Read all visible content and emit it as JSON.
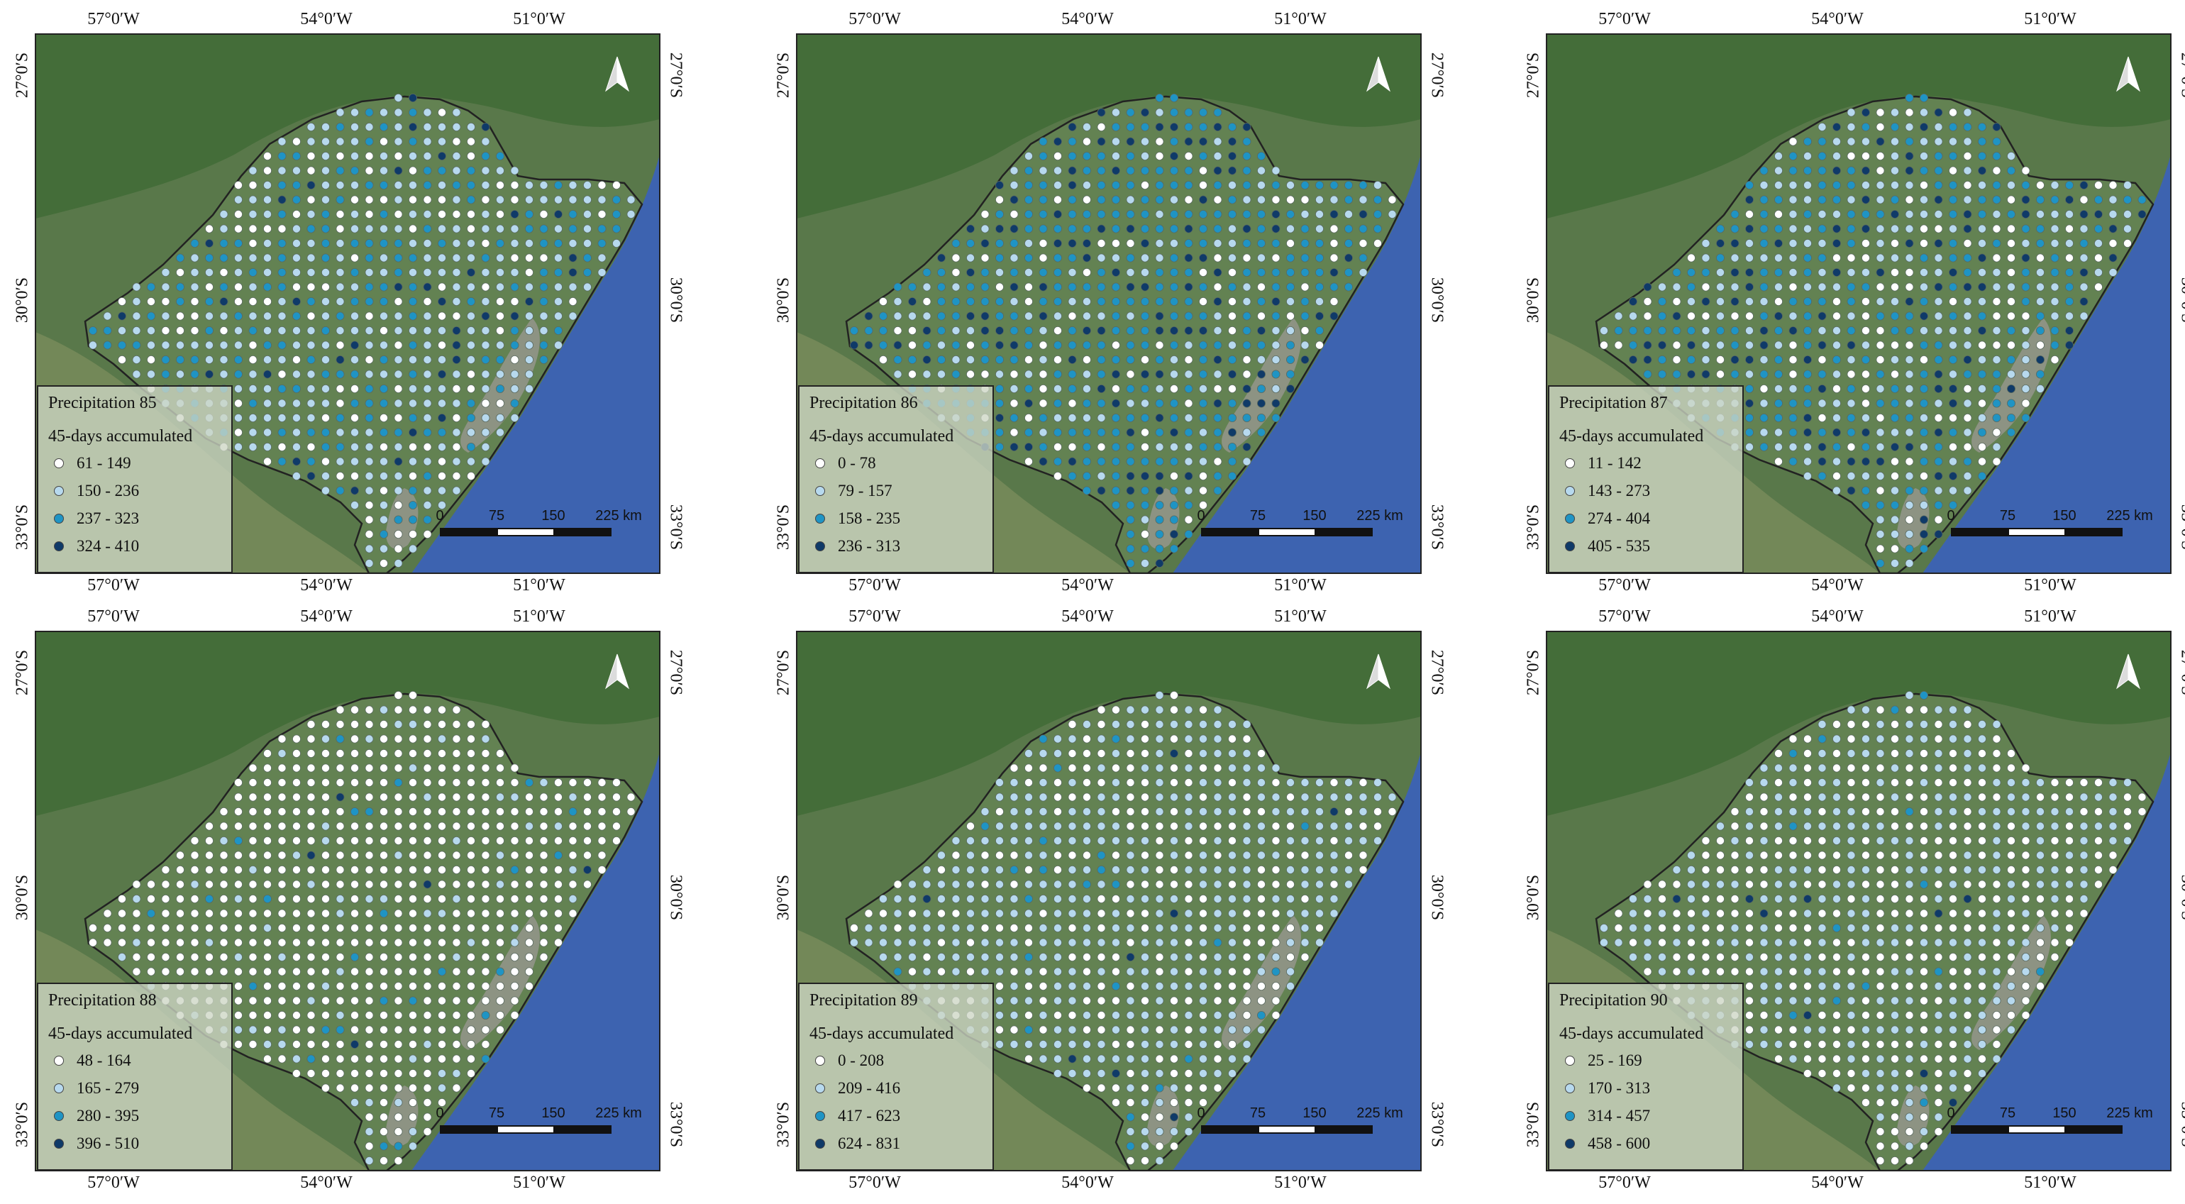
{
  "axes": {
    "lon_labels": [
      "57°0′W",
      "54°0′W",
      "51°0′W"
    ],
    "lat_labels": [
      "27°0′S",
      "30°0′S",
      "33°0′S"
    ]
  },
  "scale_bar": {
    "labels": [
      "0",
      "75",
      "150",
      "225 km"
    ]
  },
  "icons": {
    "north_arrow": "north-arrow-icon",
    "legend_symbol": "circle-marker-icon"
  },
  "colors": {
    "class_1": "#ffffff",
    "class_2": "#b7d9ee",
    "class_3": "#1f94c4",
    "class_4": "#0f3a68",
    "ocean": "#3d63b0",
    "land": "#59784a",
    "state_fill": "#6b8a5a",
    "lagoon": "#8f9486"
  },
  "panels": [
    {
      "title": "Precipitation 85",
      "subtitle": "45-days accumulated",
      "classes": [
        "61 - 149",
        "150 - 236",
        "237 - 323",
        "324 - 410"
      ],
      "class_shares": [
        0.2,
        0.5,
        0.25,
        0.05
      ]
    },
    {
      "title": "Precipitation 86",
      "subtitle": "45-days accumulated",
      "classes": [
        "0 - 78",
        "79 - 157",
        "158 - 235",
        "236 - 313"
      ],
      "class_shares": [
        0.15,
        0.2,
        0.5,
        0.15
      ]
    },
    {
      "title": "Precipitation 87",
      "subtitle": "45-days accumulated",
      "classes": [
        "11 - 142",
        "143 - 273",
        "274 - 404",
        "405 - 535"
      ],
      "class_shares": [
        0.2,
        0.35,
        0.3,
        0.15
      ]
    },
    {
      "title": "Precipitation 88",
      "subtitle": "45-days accumulated",
      "classes": [
        "48 - 164",
        "165 - 279",
        "280 - 395",
        "396 - 510"
      ],
      "class_shares": [
        0.85,
        0.1,
        0.04,
        0.01
      ]
    },
    {
      "title": "Precipitation 89",
      "subtitle": "45-days accumulated",
      "classes": [
        "0 - 208",
        "209 - 416",
        "417 - 623",
        "624 - 831"
      ],
      "class_shares": [
        0.35,
        0.6,
        0.04,
        0.01
      ]
    },
    {
      "title": "Precipitation 90",
      "subtitle": "45-days accumulated",
      "classes": [
        "25 - 169",
        "170 - 313",
        "314 - 457",
        "458 - 600"
      ],
      "class_shares": [
        0.55,
        0.42,
        0.02,
        0.01
      ]
    }
  ]
}
